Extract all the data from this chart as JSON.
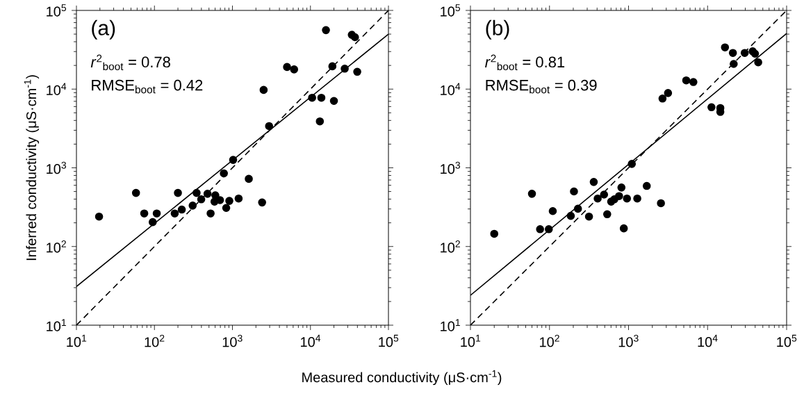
{
  "chart_data": [
    {
      "type": "scatter",
      "xlabel": "Measured conductivity (μS·cm$^{-1}$)",
      "ylabel": "Inferred conductivity (μS·cm$^{-1}$)",
      "log": "xy",
      "xlim": [
        10,
        100000
      ],
      "ylim": [
        10,
        100000
      ],
      "xticks": [
        {
          "value": 10,
          "label": "10$^{1}$"
        },
        {
          "value": 100,
          "label": "10$^{2}$"
        },
        {
          "value": 1000,
          "label": "10$^{3}$"
        },
        {
          "value": 10000,
          "label": "10$^{4}$"
        },
        {
          "value": 100000,
          "label": "10$^{5}$"
        }
      ],
      "yticks": [
        {
          "value": 10,
          "label": "10$^{1}$"
        },
        {
          "value": 100,
          "label": "10$^{2}$"
        },
        {
          "value": 1000,
          "label": "10$^{3}$"
        },
        {
          "value": 10000,
          "label": "10$^{4}$"
        },
        {
          "value": 100000,
          "label": "10$^{5}$"
        }
      ],
      "annotations": [
        "(a)",
        "*r*$^{2}$$_{boot}$ = 0.78",
        "RMSE$_{boot}$ = 0.42"
      ],
      "series": [
        {
          "color": "#000000",
          "marker": "circle",
          "x": [
            19.5,
            58,
            74,
            107,
            95,
            182,
            200,
            224,
            309,
            347,
            398,
            479,
            525,
            603,
            589,
            692,
            832,
            912,
            776,
            1020,
            1200,
            1620,
            2400,
            2950,
            2510,
            5010,
            6170,
            10500,
            13800,
            20000,
            13200,
            15800,
            19100,
            27500,
            39800,
            33900,
            37200
          ],
          "values": [
            240,
            480,
            263,
            263,
            204,
            263,
            480,
            295,
            331,
            480,
            398,
            468,
            263,
            447,
            372,
            389,
            309,
            380,
            851,
            1260,
            407,
            724,
            363,
            3390,
            9770,
            19100,
            17800,
            7760,
            7760,
            7080,
            3890,
            56200,
            19500,
            18200,
            16600,
            49000,
            45700
          ]
        },
        {
          "type": "line",
          "color": "#000000",
          "marker": "none",
          "line_style": "solid",
          "x": [
            10,
            100000
          ],
          "values": [
            31,
            50000
          ]
        },
        {
          "type": "line",
          "color": "#000000",
          "marker": "none",
          "line_style": "dashed",
          "x": [
            10,
            100000
          ],
          "values": [
            10,
            100000
          ]
        }
      ]
    },
    {
      "type": "scatter",
      "log": "xy",
      "xlim": [
        10,
        100000
      ],
      "ylim": [
        10,
        100000
      ],
      "xticks": [
        {
          "value": 10,
          "label": "10$^{1}$"
        },
        {
          "value": 100,
          "label": "10$^{2}$"
        },
        {
          "value": 1000,
          "label": "10$^{3}$"
        },
        {
          "value": 10000,
          "label": "10$^{4}$"
        },
        {
          "value": 100000,
          "label": "10$^{5}$"
        }
      ],
      "yticks": [
        {
          "value": 10,
          "label": "10$^{1}$"
        },
        {
          "value": 100,
          "label": "10$^{2}$"
        },
        {
          "value": 1000,
          "label": "10$^{3}$"
        },
        {
          "value": 10000,
          "label": "10$^{4}$"
        },
        {
          "value": 100000,
          "label": "10$^{5}$"
        }
      ],
      "annotations": [
        "(b)",
        "*r*$^{2}$$_{boot}$ = 0.81",
        "RMSE$_{boot}$ = 0.39"
      ],
      "series": [
        {
          "color": "#000000",
          "marker": "circle",
          "x": [
            20,
            60,
            76,
            98,
            110,
            186,
            204,
            229,
            316,
            363,
            407,
            490,
            537,
            603,
            661,
            759,
            813,
            871,
            955,
            1100,
            1290,
            1700,
            2570,
            2690,
            3160,
            5370,
            6610,
            11200,
            14500,
            14500,
            16600,
            20900,
            21400,
            29500,
            37200,
            39800,
            43700
          ],
          "values": [
            145,
            468,
            166,
            166,
            282,
            245,
            501,
            302,
            240,
            661,
            407,
            457,
            257,
            372,
            398,
            437,
            562,
            170,
            407,
            1120,
            407,
            589,
            355,
            7590,
            8910,
            12900,
            12300,
            5890,
            5750,
            5130,
            33900,
            28800,
            20900,
            28800,
            30200,
            28200,
            21900
          ]
        },
        {
          "type": "line",
          "color": "#000000",
          "marker": "none",
          "line_style": "solid",
          "x": [
            10,
            100000
          ],
          "values": [
            24,
            51000
          ]
        },
        {
          "type": "line",
          "color": "#000000",
          "marker": "none",
          "line_style": "dashed",
          "x": [
            10,
            100000
          ],
          "values": [
            10,
            100000
          ]
        }
      ]
    }
  ]
}
